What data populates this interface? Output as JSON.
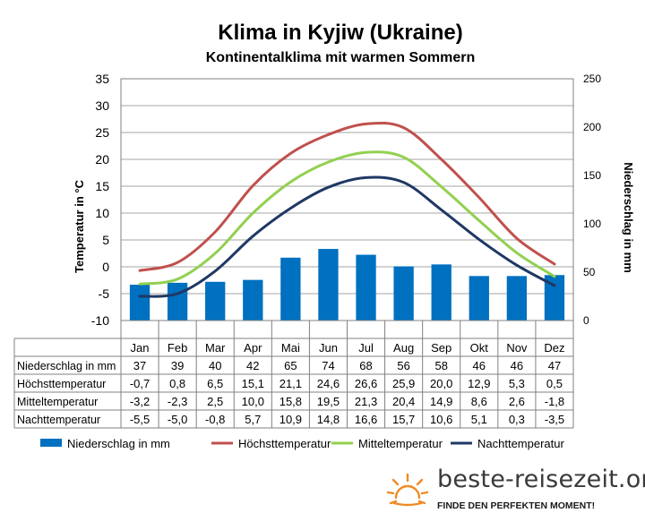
{
  "title": "Klima in Kyjiw (Ukraine)",
  "subtitle": "Kontinentalklima mit warmen Sommern",
  "chart_data": {
    "type": "bar+line",
    "categories": [
      "Jan",
      "Feb",
      "Mar",
      "Apr",
      "Mai",
      "Jun",
      "Jul",
      "Aug",
      "Sep",
      "Okt",
      "Nov",
      "Dez"
    ],
    "y_left": {
      "label": "Temperatur in °C",
      "lim": [
        -10,
        35
      ],
      "ticks": [
        -10,
        -5,
        0,
        5,
        10,
        15,
        20,
        25,
        30,
        35
      ]
    },
    "y_right": {
      "label": "Niederschlag in mm",
      "lim": [
        0,
        250
      ],
      "ticks": [
        0,
        50,
        100,
        150,
        200,
        250
      ]
    },
    "grid": true,
    "legend_position": "bottom",
    "series": [
      {
        "name": "Niederschlag in mm",
        "kind": "bar",
        "axis": "right",
        "color": "#0070C0",
        "values": [
          37,
          39,
          40,
          42,
          65,
          74,
          68,
          56,
          58,
          46,
          46,
          47
        ]
      },
      {
        "name": "Höchsttemperatur",
        "kind": "line",
        "axis": "left",
        "color": "#C0504D",
        "values": [
          -0.7,
          0.8,
          6.5,
          15.1,
          21.1,
          24.6,
          26.6,
          25.9,
          20.0,
          12.9,
          5.3,
          0.5
        ]
      },
      {
        "name": "Mitteltemperatur",
        "kind": "line",
        "axis": "left",
        "color": "#92D050",
        "values": [
          -3.2,
          -2.3,
          2.5,
          10.0,
          15.8,
          19.5,
          21.3,
          20.4,
          14.9,
          8.6,
          2.6,
          -1.8
        ]
      },
      {
        "name": "Nachttemperatur",
        "kind": "line",
        "axis": "left",
        "color": "#1F3864",
        "values": [
          -5.5,
          -5.0,
          -0.8,
          5.7,
          10.9,
          14.8,
          16.6,
          15.7,
          10.6,
          5.1,
          0.3,
          -3.5
        ]
      }
    ],
    "table": {
      "rows": [
        {
          "label": "Niederschlag in mm",
          "values": [
            "37",
            "39",
            "40",
            "42",
            "65",
            "74",
            "68",
            "56",
            "58",
            "46",
            "46",
            "47"
          ]
        },
        {
          "label": "Höchsttemperatur",
          "values": [
            "-0,7",
            "0,8",
            "6,5",
            "15,1",
            "21,1",
            "24,6",
            "26,6",
            "25,9",
            "20,0",
            "12,9",
            "5,3",
            "0,5"
          ]
        },
        {
          "label": "Mitteltemperatur",
          "values": [
            "-3,2",
            "-2,3",
            "2,5",
            "10,0",
            "15,8",
            "19,5",
            "21,3",
            "20,4",
            "14,9",
            "8,6",
            "2,6",
            "-1,8"
          ]
        },
        {
          "label": "Nachttemperatur",
          "values": [
            "-5,5",
            "-5,0",
            "-0,8",
            "5,7",
            "10,9",
            "14,8",
            "16,6",
            "15,7",
            "10,6",
            "5,1",
            "0,3",
            "-3,5"
          ]
        }
      ]
    }
  },
  "brand": {
    "name": "beste-reisezeit.org",
    "tagline": "FINDE DEN PERFEKTEN MOMENT!",
    "logo_icon": "sun-icon",
    "logo_color": "#F08A24"
  }
}
